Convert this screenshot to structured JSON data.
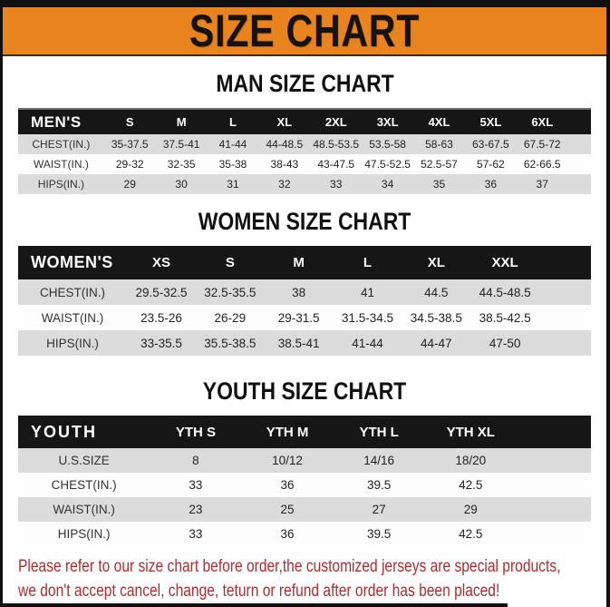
{
  "banner": {
    "title": "SIZE CHART"
  },
  "colors": {
    "orange": "#E8831E",
    "header_black": "#161616",
    "row_gray": "#DCDCDC",
    "disclaimer_red": "#B12B2E"
  },
  "men": {
    "heading": "MAN SIZE CHART",
    "table": {
      "header_label": "MEN'S",
      "sizes": [
        "S",
        "M",
        "L",
        "XL",
        "2XL",
        "3XL",
        "4XL",
        "5XL",
        "6XL"
      ],
      "rows": [
        {
          "label": "CHEST(IN.)",
          "values": [
            "35-37.5",
            "37.5-41",
            "41-44",
            "44-48.5",
            "48.5-53.5",
            "53.5-58",
            "58-63",
            "63-67.5",
            "67.5-72"
          ]
        },
        {
          "label": "WAIST(IN.)",
          "values": [
            "29-32",
            "32-35",
            "35-38",
            "38-43",
            "43-47.5",
            "47.5-52.5",
            "52.5-57",
            "57-62",
            "62-66.5"
          ]
        },
        {
          "label": "HIPS(IN.)",
          "values": [
            "29",
            "30",
            "31",
            "32",
            "33",
            "34",
            "35",
            "36",
            "37"
          ]
        }
      ]
    }
  },
  "women": {
    "heading": "WOMEN SIZE CHART",
    "table": {
      "header_label": "WOMEN'S",
      "sizes": [
        "XS",
        "S",
        "M",
        "L",
        "XL",
        "XXL"
      ],
      "rows": [
        {
          "label": "CHEST(IN.)",
          "values": [
            "29.5-32.5",
            "32.5-35.5",
            "38",
            "41",
            "44.5",
            "44.5-48.5"
          ]
        },
        {
          "label": "WAIST(IN.)",
          "values": [
            "23.5-26",
            "26-29",
            "29-31.5",
            "31.5-34.5",
            "34.5-38.5",
            "38.5-42.5"
          ]
        },
        {
          "label": "HIPS(IN.)",
          "values": [
            "33-35.5",
            "35.5-38.5",
            "38.5-41",
            "41-44",
            "44-47",
            "47-50"
          ]
        }
      ]
    }
  },
  "youth": {
    "heading": "YOUTH SIZE CHART",
    "table": {
      "header_label": "YOUTH",
      "sizes": [
        "YTH S",
        "YTH M",
        "YTH L",
        "YTH XL"
      ],
      "rows": [
        {
          "label": "U.S.SIZE",
          "values": [
            "8",
            "10/12",
            "14/16",
            "18/20"
          ]
        },
        {
          "label": "CHEST(IN.)",
          "values": [
            "33",
            "36",
            "39.5",
            "42.5"
          ]
        },
        {
          "label": "WAIST(IN.)",
          "values": [
            "23",
            "25",
            "27",
            "29"
          ]
        },
        {
          "label": "HIPS(IN.)",
          "values": [
            "33",
            "36",
            "39.5",
            "42.5"
          ]
        }
      ]
    }
  },
  "disclaimer": {
    "line1": "Please refer to our size chart before order,the customized jerseys are special products,",
    "line2": "we don't accept cancel, change, teturn or refund after order has been placed!"
  }
}
